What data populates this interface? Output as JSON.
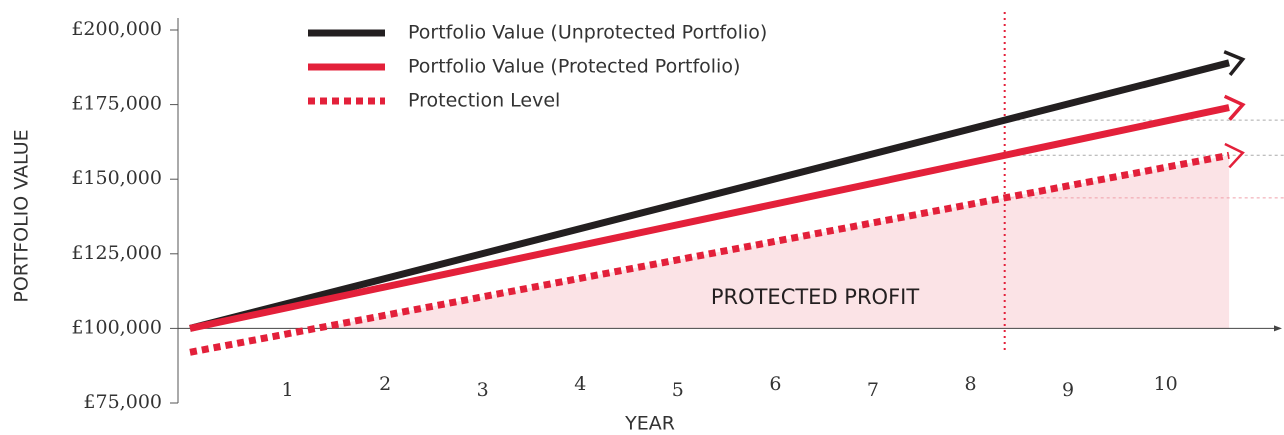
{
  "chart_data": {
    "type": "line",
    "y_label": "PORTFOLIO VALUE",
    "x_label": "YEAR",
    "annotation": "PROTECTED PROFIT",
    "x": [
      0,
      10.65
    ],
    "series": [
      {
        "name": "Portfolio Value (Unprotected Portfolio)",
        "color": "#231f20",
        "style": "solid",
        "values": [
          100000,
          189000
        ]
      },
      {
        "name": "Portfolio Value (Protected Portfolio)",
        "color": "#e3203a",
        "style": "solid",
        "values": [
          100000,
          174000
        ]
      },
      {
        "name": "Protection Level",
        "color": "#e3203a",
        "style": "dotted",
        "values": [
          92000,
          158000
        ]
      }
    ],
    "marker_x": 8.35,
    "xlim": [
      0,
      11.1
    ],
    "xticks": [
      1,
      2,
      3,
      4,
      5,
      6,
      7,
      8,
      9,
      10
    ],
    "ylim": [
      75000,
      200000
    ],
    "yticks": [
      {
        "value": 75000,
        "label": "£75,000"
      },
      {
        "value": 100000,
        "label": "£100,000"
      },
      {
        "value": 125000,
        "label": "£125,000"
      },
      {
        "value": 150000,
        "label": "£150,000"
      },
      {
        "value": 175000,
        "label": "£175,000"
      },
      {
        "value": 200000,
        "label": "£200,000"
      }
    ],
    "fill_color": "#fbe3e6"
  }
}
